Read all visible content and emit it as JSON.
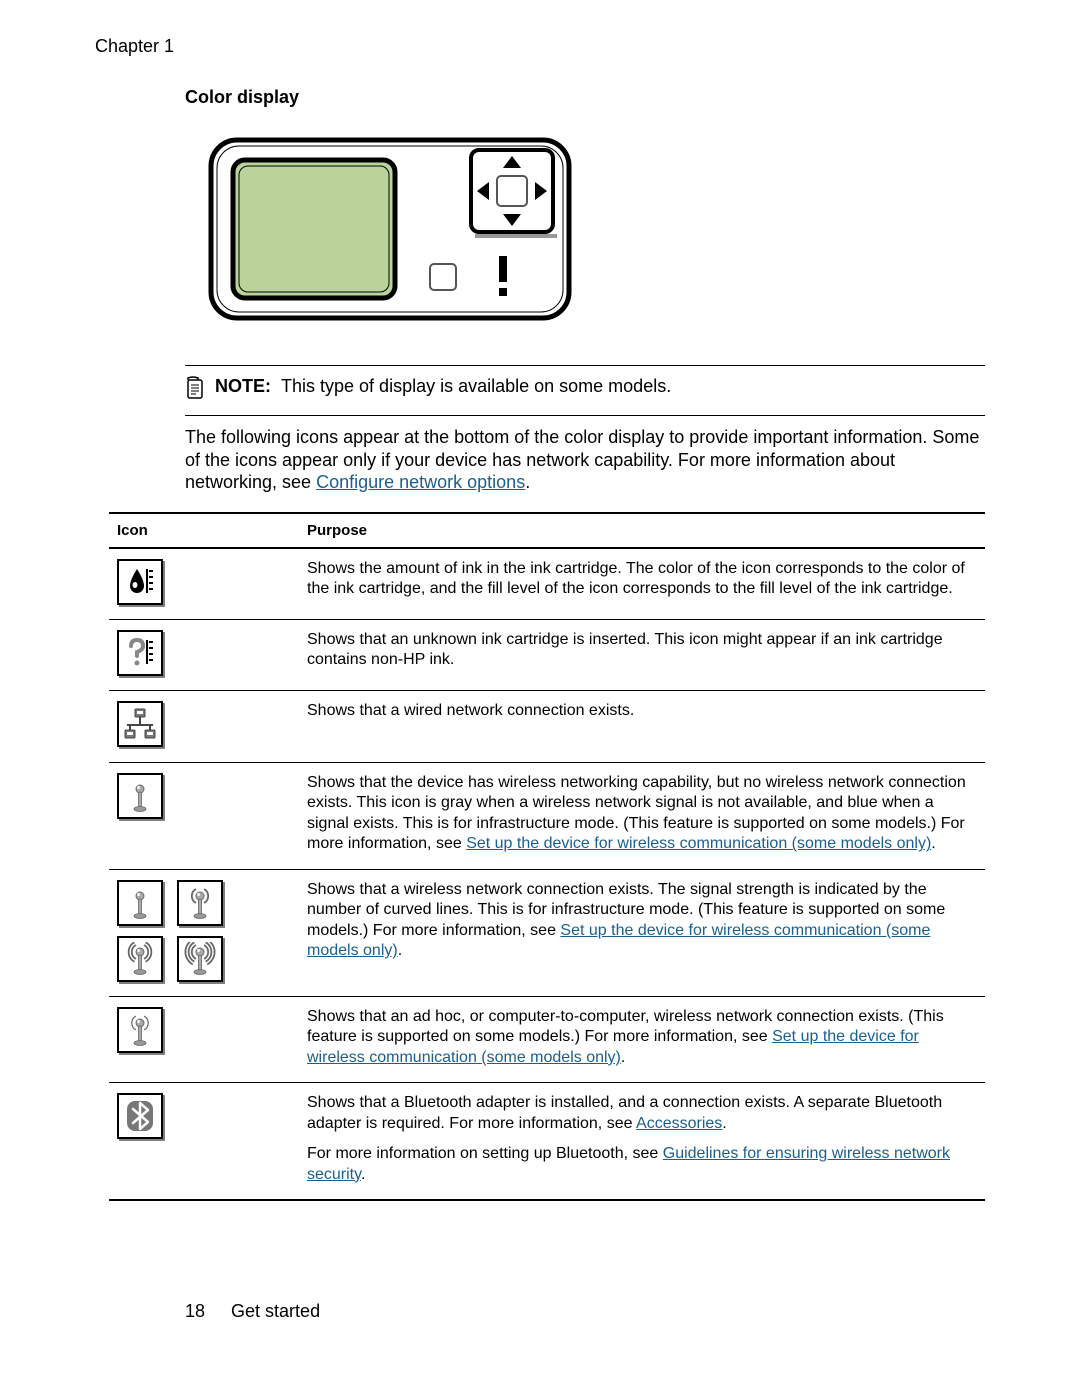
{
  "header": {
    "chapter": "Chapter 1"
  },
  "section": {
    "title": "Color display"
  },
  "device_illustration": {
    "outer_stroke": "#000000",
    "screen_fill": "#b9d39b",
    "screen_stroke": "#000000",
    "bg": "#ffffff"
  },
  "note": {
    "label": "NOTE:",
    "text": "This type of display is available on some models."
  },
  "intro": {
    "text_before_link": "The following icons appear at the bottom of the color display to provide important information. Some of the icons appear only if your device has network capability. For more information about networking, see ",
    "link_text": "Configure network options",
    "text_after_link": "."
  },
  "table": {
    "headers": {
      "icon": "Icon",
      "purpose": "Purpose"
    },
    "rows": [
      {
        "icon_type": "ink",
        "purpose": [
          {
            "t": "text",
            "v": "Shows the amount of ink in the ink cartridge. The color of the icon corresponds to the color of the ink cartridge, and the fill level of the icon corresponds to the fill level of the ink cartridge."
          }
        ]
      },
      {
        "icon_type": "question",
        "purpose": [
          {
            "t": "text",
            "v": "Shows that an unknown ink cartridge is inserted. This icon might appear if an ink cartridge contains non-HP ink."
          }
        ]
      },
      {
        "icon_type": "wired",
        "purpose": [
          {
            "t": "text",
            "v": "Shows that a wired network connection exists."
          }
        ]
      },
      {
        "icon_type": "wifi_none",
        "purpose": [
          {
            "t": "text",
            "v": "Shows that the device has wireless networking capability, but no wireless network connection exists. This icon is gray when a wireless network signal is not available, and blue when a signal exists. This is for infrastructure mode. (This feature is supported on some models.) For more information, see "
          },
          {
            "t": "link",
            "v": "Set up the device for wireless communication (some models only)"
          },
          {
            "t": "text",
            "v": "."
          }
        ]
      },
      {
        "icon_type": "wifi_signal",
        "purpose": [
          {
            "t": "text",
            "v": "Shows that a wireless network connection exists. The signal strength is indicated by the number of curved lines. This is for infrastructure mode. (This feature is supported on some models.) For more information, see "
          },
          {
            "t": "link",
            "v": "Set up the device for wireless communication (some models only)"
          },
          {
            "t": "text",
            "v": "."
          }
        ]
      },
      {
        "icon_type": "adhoc",
        "purpose": [
          {
            "t": "text",
            "v": "Shows that an ad hoc, or computer-to-computer, wireless network connection exists. (This feature is supported on some models.) For more information, see "
          },
          {
            "t": "link",
            "v": "Set up the device for wireless communication (some models only)"
          },
          {
            "t": "text",
            "v": "."
          }
        ]
      },
      {
        "icon_type": "bluetooth",
        "purpose": [
          {
            "t": "text",
            "v": "Shows that a Bluetooth adapter is installed, and a connection exists. A separate Bluetooth adapter is required. For more information, see "
          },
          {
            "t": "link",
            "v": "Accessories"
          },
          {
            "t": "text",
            "v": "."
          },
          {
            "t": "para",
            "v": ""
          },
          {
            "t": "text",
            "v": "For more information on setting up Bluetooth, see "
          },
          {
            "t": "link",
            "v": "Guidelines for ensuring wireless network security"
          },
          {
            "t": "text",
            "v": "."
          }
        ]
      }
    ]
  },
  "footer": {
    "page": "18",
    "section": "Get started"
  },
  "colors": {
    "link": "#1a5f8e",
    "text": "#000000",
    "rule": "#000000"
  }
}
